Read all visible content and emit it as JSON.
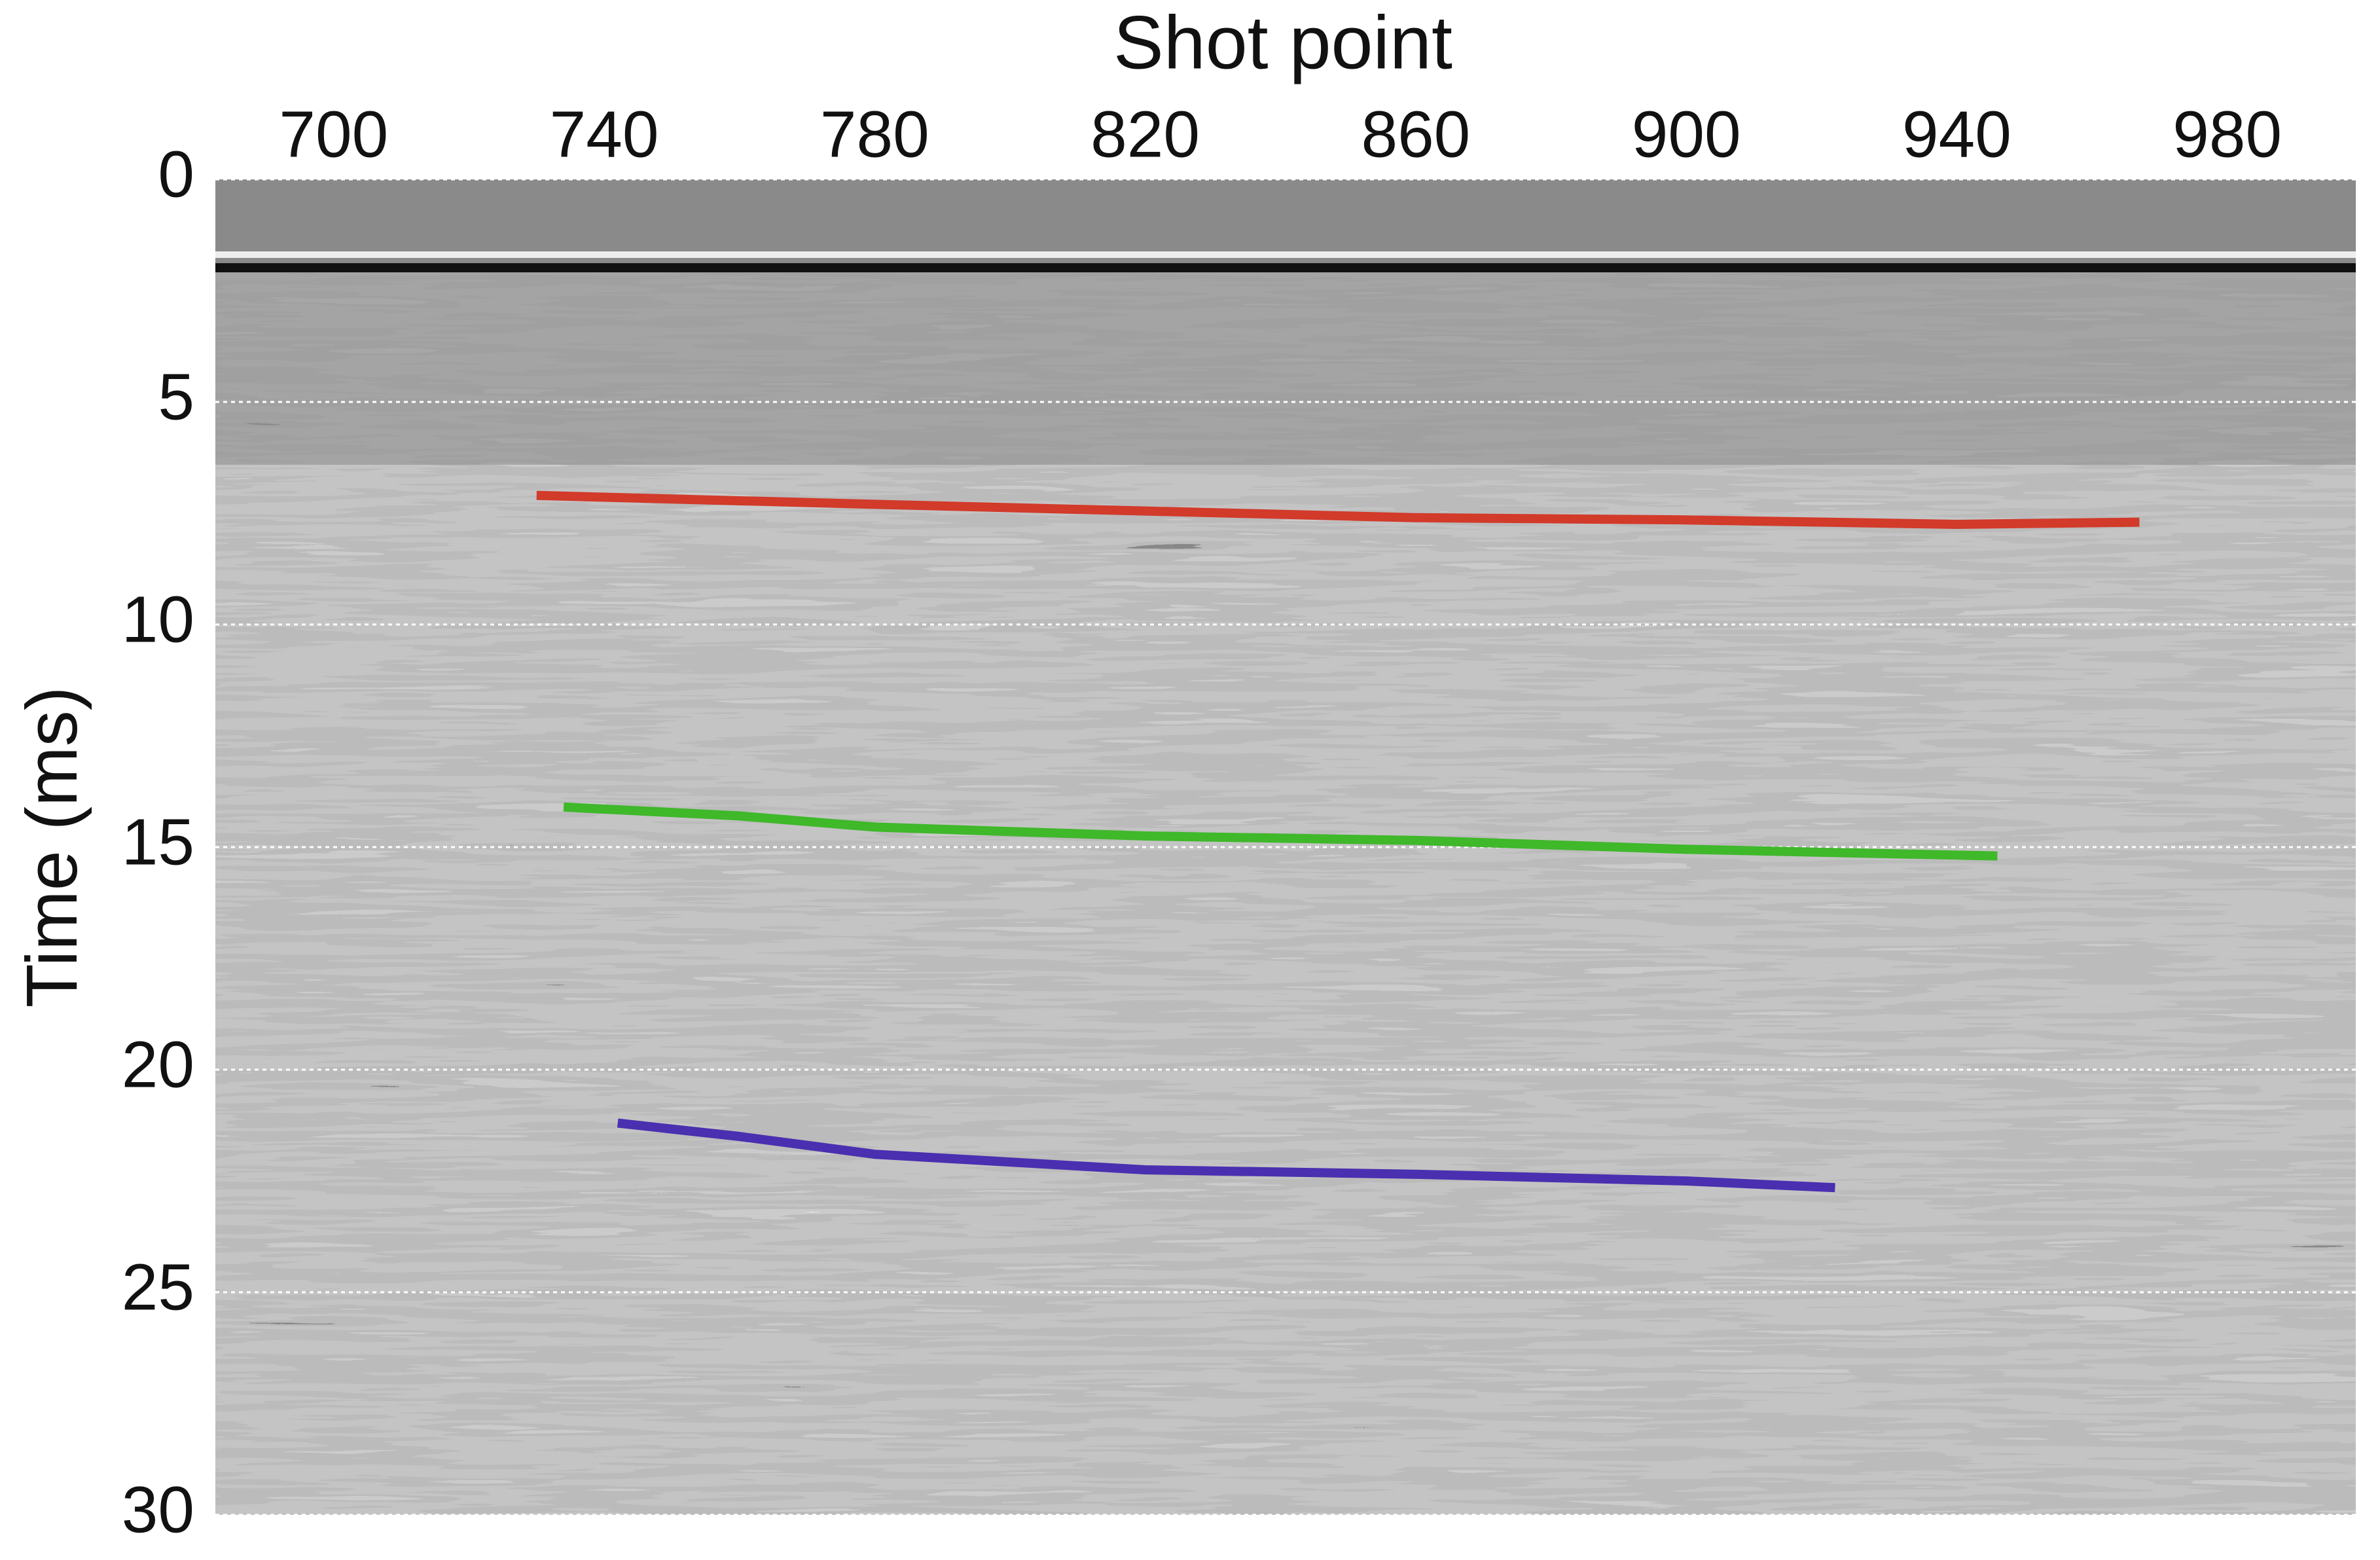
{
  "chart_data": {
    "type": "line",
    "x_label": "Shot point",
    "y_label": "Time (ms)",
    "xlim": [
      682.5,
      999
    ],
    "xticks": [
      700,
      740,
      780,
      820,
      860,
      900,
      940,
      980
    ],
    "ylim": [
      30,
      0
    ],
    "yticks": [
      0,
      5,
      10,
      15,
      20,
      25,
      30
    ],
    "y_inverted": true,
    "grid": true,
    "series": [
      {
        "color": "#d23a2a",
        "x": [
          730,
          780,
          820,
          860,
          900,
          940,
          967
        ],
        "values": [
          7.1,
          7.3,
          7.45,
          7.6,
          7.65,
          7.75,
          7.7
        ]
      },
      {
        "color": "#3fb82a",
        "x": [
          734,
          760,
          780,
          820,
          860,
          900,
          946
        ],
        "values": [
          14.1,
          14.3,
          14.55,
          14.75,
          14.85,
          15.05,
          15.2
        ]
      },
      {
        "color": "#4a2fb0",
        "x": [
          742,
          760,
          780,
          820,
          860,
          900,
          922
        ],
        "values": [
          21.2,
          21.5,
          21.9,
          22.25,
          22.35,
          22.5,
          22.65
        ]
      }
    ]
  }
}
